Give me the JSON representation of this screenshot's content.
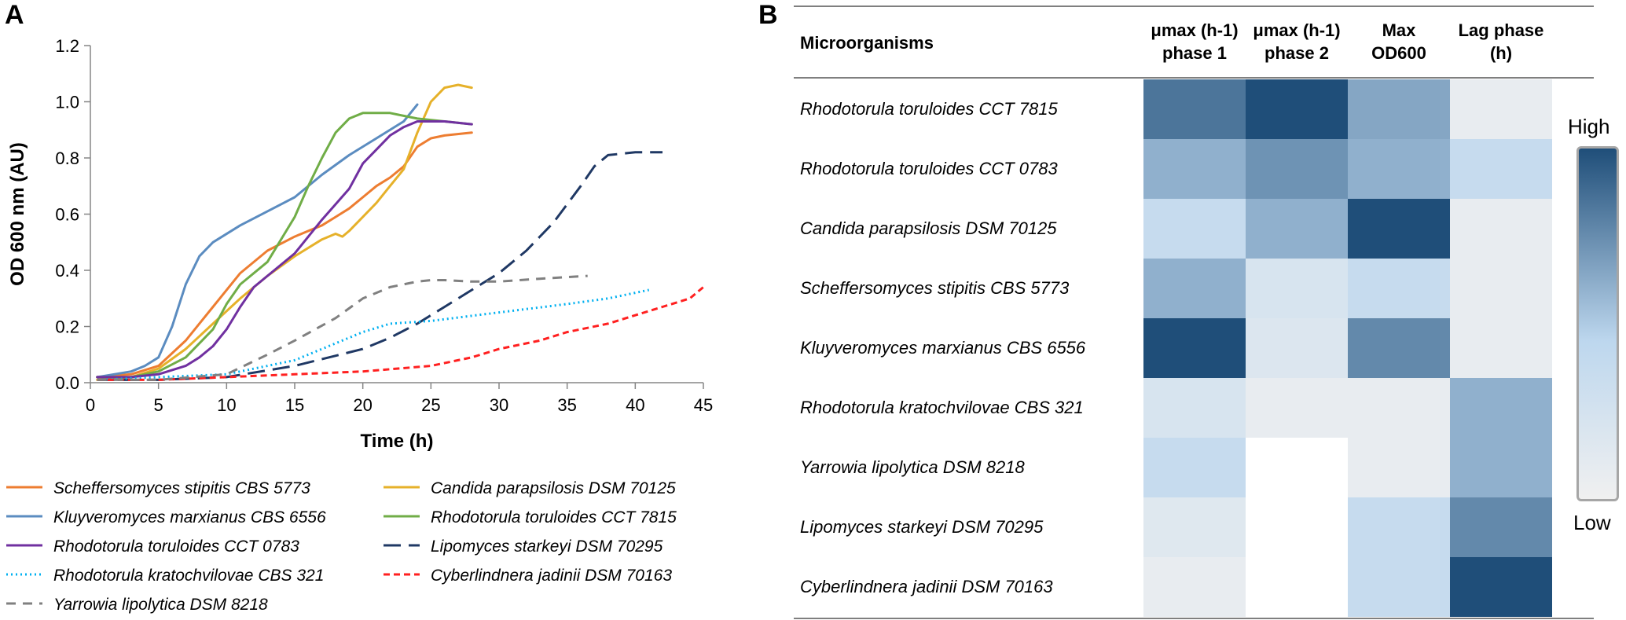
{
  "panels": {
    "a": "A",
    "b": "B"
  },
  "chart_data": [
    {
      "type": "line",
      "xlabel": "Time (h)",
      "ylabel": "OD 600 nm (AU)",
      "xlim": [
        0,
        45
      ],
      "ylim": [
        0,
        1.2
      ],
      "xticks": [
        0,
        5,
        10,
        15,
        20,
        25,
        30,
        35,
        40,
        45
      ],
      "yticks": [
        0.0,
        0.2,
        0.4,
        0.6,
        0.8,
        1.0,
        1.2
      ],
      "ytick_labels": [
        "0.0",
        "0.2",
        "0.4",
        "0.6",
        "0.8",
        "1.0",
        "1.2"
      ],
      "grid": false,
      "legend_placement": "bottom",
      "series": [
        {
          "name": "Scheffersomyces stipitis CBS 5773",
          "color": "#ed7d31",
          "style": "solid",
          "x": [
            0.5,
            3,
            5,
            7,
            9,
            11,
            13,
            15,
            16,
            17,
            18,
            19,
            20,
            21,
            22,
            23,
            24,
            25,
            26,
            28
          ],
          "y": [
            0.02,
            0.03,
            0.06,
            0.15,
            0.27,
            0.39,
            0.47,
            0.52,
            0.54,
            0.56,
            0.59,
            0.62,
            0.66,
            0.7,
            0.73,
            0.77,
            0.84,
            0.87,
            0.88,
            0.89
          ]
        },
        {
          "name": "Candida parapsilosis DSM 70125",
          "color": "#e6b12a",
          "style": "solid",
          "x": [
            0.5,
            3,
            5,
            7,
            9,
            11,
            13,
            15,
            17,
            18,
            18.5,
            19,
            20,
            21,
            22,
            23,
            24,
            25,
            26,
            27,
            28
          ],
          "y": [
            0.01,
            0.02,
            0.05,
            0.12,
            0.21,
            0.3,
            0.38,
            0.45,
            0.51,
            0.53,
            0.52,
            0.54,
            0.59,
            0.64,
            0.7,
            0.76,
            0.89,
            1.0,
            1.05,
            1.06,
            1.05
          ]
        },
        {
          "name": "Kluyveromyces marxianus CBS 6556",
          "color": "#5b8cc0",
          "style": "solid",
          "x": [
            0.5,
            3,
            4,
            5,
            6,
            7,
            8,
            9,
            11,
            13,
            15,
            17,
            19,
            21,
            23,
            24
          ],
          "y": [
            0.02,
            0.04,
            0.06,
            0.09,
            0.2,
            0.35,
            0.45,
            0.5,
            0.56,
            0.61,
            0.66,
            0.74,
            0.81,
            0.87,
            0.93,
            0.99
          ]
        },
        {
          "name": "Rhodotorula toruloides CCT 7815",
          "color": "#70ad47",
          "style": "solid",
          "x": [
            0.5,
            3,
            5,
            7,
            8,
            9,
            10,
            11,
            13,
            15,
            16,
            17,
            18,
            19,
            20,
            21,
            22,
            23,
            24,
            26,
            28
          ],
          "y": [
            0.02,
            0.02,
            0.04,
            0.09,
            0.14,
            0.19,
            0.28,
            0.35,
            0.43,
            0.59,
            0.7,
            0.8,
            0.89,
            0.94,
            0.96,
            0.96,
            0.96,
            0.95,
            0.94,
            0.93,
            0.92
          ]
        },
        {
          "name": "Rhodotorula toruloides CCT 0783",
          "color": "#7030a0",
          "style": "solid",
          "x": [
            0.5,
            3,
            5,
            7,
            8,
            9,
            10,
            11,
            12,
            13,
            15,
            17,
            19,
            20,
            21,
            22,
            23,
            24,
            25,
            26,
            28
          ],
          "y": [
            0.02,
            0.02,
            0.03,
            0.06,
            0.09,
            0.13,
            0.19,
            0.27,
            0.34,
            0.38,
            0.46,
            0.58,
            0.69,
            0.78,
            0.83,
            0.88,
            0.91,
            0.93,
            0.93,
            0.93,
            0.92
          ]
        },
        {
          "name": "Lipomyces starkeyi DSM 70295",
          "color": "#1f3864",
          "style": "longdash",
          "x": [
            0.5,
            5,
            10,
            15,
            20,
            22,
            24,
            26,
            28,
            30,
            32,
            34,
            36,
            37,
            38,
            40,
            42
          ],
          "y": [
            0.01,
            0.01,
            0.02,
            0.06,
            0.12,
            0.16,
            0.21,
            0.27,
            0.33,
            0.39,
            0.47,
            0.57,
            0.7,
            0.77,
            0.81,
            0.82,
            0.82
          ]
        },
        {
          "name": "Rhodotorula kratochvilovae CBS 321",
          "color": "#00b0f0",
          "style": "dotted",
          "x": [
            0.5,
            5,
            10,
            15,
            18,
            20,
            22,
            25,
            30,
            35,
            38,
            41
          ],
          "y": [
            0.01,
            0.02,
            0.03,
            0.08,
            0.14,
            0.18,
            0.21,
            0.22,
            0.25,
            0.28,
            0.3,
            0.33
          ]
        },
        {
          "name": "Cyberlindnera jadinii DSM 70163",
          "color": "#ff2020",
          "style": "shortdash",
          "x": [
            0.5,
            5,
            10,
            15,
            20,
            25,
            28,
            30,
            33,
            35,
            38,
            40,
            42,
            44,
            45
          ],
          "y": [
            0.01,
            0.01,
            0.02,
            0.03,
            0.04,
            0.06,
            0.09,
            0.12,
            0.15,
            0.18,
            0.21,
            0.24,
            0.27,
            0.3,
            0.34
          ]
        },
        {
          "name": "Yarrowia lipolytica DSM 8218",
          "color": "#808080",
          "style": "dash",
          "x": [
            0.5,
            5,
            10,
            13,
            15,
            18,
            20,
            22,
            24,
            25,
            26,
            28,
            30,
            33,
            36.5
          ],
          "y": [
            0.01,
            0.01,
            0.03,
            0.1,
            0.15,
            0.23,
            0.3,
            0.34,
            0.36,
            0.365,
            0.365,
            0.36,
            0.36,
            0.37,
            0.38
          ]
        }
      ],
      "legend_order": [
        "Scheffersomyces stipitis CBS 5773",
        "Candida parapsilosis DSM 70125",
        "Kluyveromyces marxianus CBS 6556",
        "Rhodotorula toruloides CCT 7815",
        "Rhodotorula toruloides CCT 0783",
        "Lipomyces starkeyi DSM 70295",
        "Rhodotorula kratochvilovae CBS 321",
        "Cyberlindnera jadinii DSM 70163",
        "Yarrowia lipolytica DSM 8218"
      ]
    },
    {
      "type": "heatmap",
      "row_header": "Microorganisms",
      "columns": [
        "μmax (h-1)\nphase 1",
        "μmax (h-1)\nphase 2",
        "Max\nOD600",
        "Lag phase\n(h)"
      ],
      "rows": [
        "Rhodotorula toruloides CCT 7815",
        "Rhodotorula toruloides CCT 0783",
        "Candida parapsilosis DSM 70125",
        "Scheffersomyces stipitis CBS 5773",
        "Kluyveromyces marxianus CBS 6556",
        "Rhodotorula kratochvilovae CBS 321",
        "Yarrowia lipolytica DSM 8218",
        "Lipomyces  starkeyi DSM 70295",
        "Cyberlindnera jadinii DSM 70163"
      ],
      "values": [
        [
          0.8,
          1.0,
          0.55,
          0.05
        ],
        [
          0.5,
          0.65,
          0.5,
          0.25
        ],
        [
          0.25,
          0.5,
          1.0,
          0.05
        ],
        [
          0.5,
          0.15,
          0.25,
          0.05
        ],
        [
          1.0,
          0.12,
          0.7,
          0.05
        ],
        [
          0.15,
          0.05,
          0.05,
          0.5
        ],
        [
          0.25,
          0.0,
          0.05,
          0.5
        ],
        [
          0.1,
          0.0,
          0.25,
          0.7
        ],
        [
          0.05,
          0.0,
          0.25,
          1.0
        ]
      ],
      "scale": {
        "high": "High",
        "low": "Low",
        "high_color": "#1f4e79",
        "mid_color": "#bdd7ee",
        "low_color": "#f0f0f0"
      }
    }
  ]
}
